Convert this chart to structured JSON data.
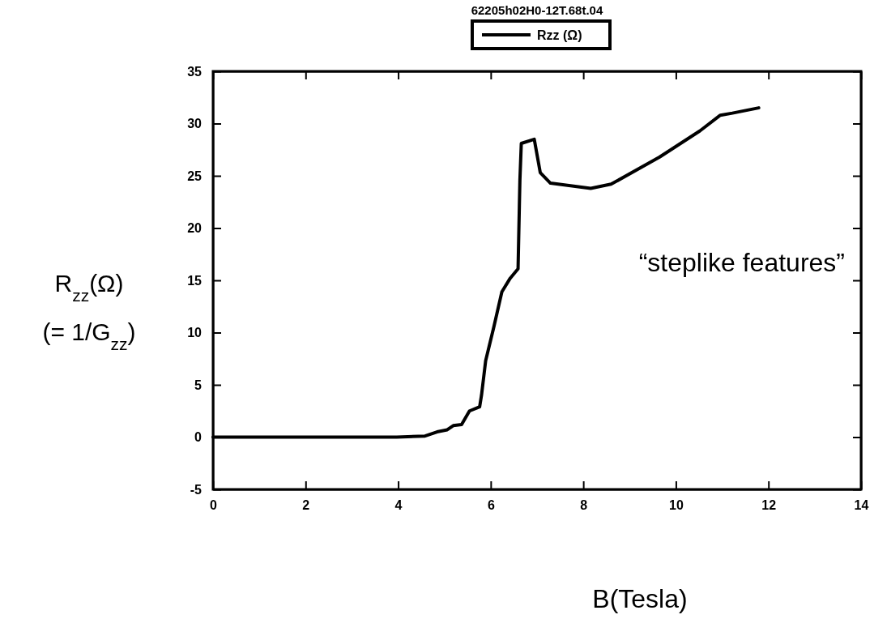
{
  "chart_data": {
    "type": "line",
    "title": "62205h02H0-12T.68t.04",
    "xlabel": "B(Tesla)",
    "ylabel": "R$_{zz}$(Ω) (= 1/G$_{zz}$)",
    "x": [
      0,
      3.97,
      4.58,
      4.84,
      5.06,
      5.19,
      5.37,
      5.54,
      5.76,
      5.8,
      5.89,
      6.07,
      6.24,
      6.42,
      6.59,
      6.63,
      6.66,
      6.94,
      7.07,
      7.29,
      8.16,
      8.6,
      9.65,
      10.52,
      10.96,
      11.22,
      11.79
    ],
    "series": [
      {
        "name": "Rzz (Ω)",
        "color": "#000000",
        "values": [
          0,
          0,
          0.1,
          0.5,
          0.7,
          1.1,
          1.2,
          2.5,
          2.9,
          4.0,
          7.3,
          10.6,
          13.9,
          15.2,
          16.1,
          24.6,
          28.1,
          28.5,
          25.3,
          24.3,
          23.8,
          24.2,
          26.8,
          29.3,
          30.8,
          31.0,
          31.5
        ]
      }
    ],
    "xlim": [
      0,
      14
    ],
    "xticks": [
      0,
      2,
      4,
      6,
      8,
      10,
      12,
      14
    ],
    "ylim": [
      -5,
      35
    ],
    "yticks": [
      -5,
      0,
      5,
      10,
      15,
      20,
      25,
      30,
      35
    ],
    "annotations": [
      "“steplike features”"
    ],
    "legend": "top",
    "grid": false,
    "marker": "none",
    "line_style": "solid"
  }
}
